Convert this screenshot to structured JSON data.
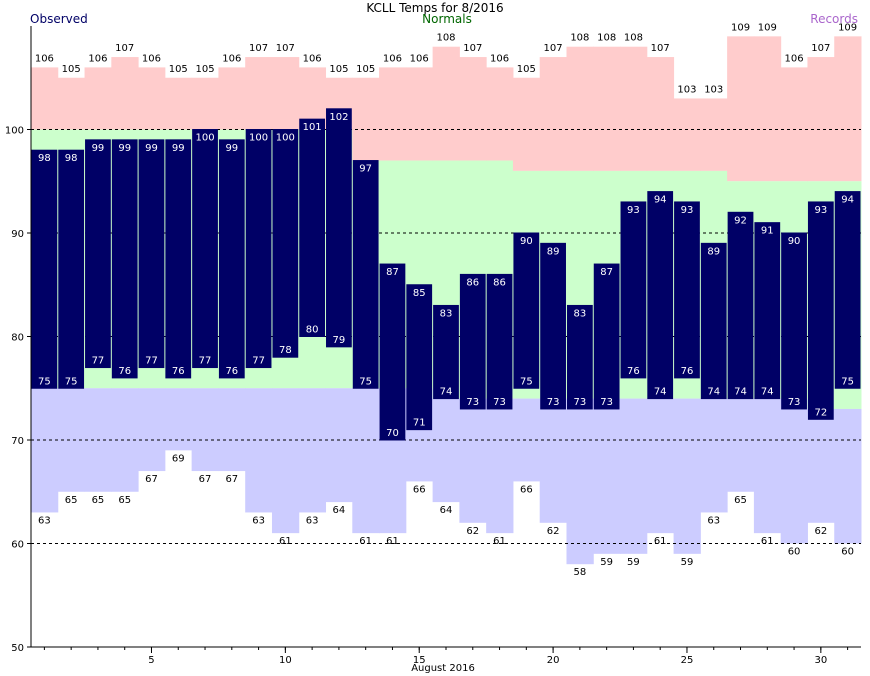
{
  "header": {
    "title": "KCLL Temps for 8/2016",
    "observed_label": "Observed",
    "normals_label": "Normals",
    "records_label": "Records"
  },
  "colors": {
    "observed": "#000066",
    "normals_band": "#ccffcc",
    "record_high_band": "#ffcccc",
    "record_low_band": "#ccccff",
    "normals_text": "#006600",
    "records_text": "#aa66cc",
    "grid": "#000000"
  },
  "chart_data": {
    "type": "bar",
    "title": "KCLL Temps for 8/2016",
    "xlabel": "August 2016",
    "ylabel": "",
    "ylim": [
      50,
      110
    ],
    "xlim": [
      0.5,
      31.5
    ],
    "yticks": [
      50,
      60,
      70,
      80,
      90,
      100
    ],
    "xticks": [
      5,
      10,
      15,
      20,
      25,
      30
    ],
    "grid_lines": [
      60,
      70,
      80,
      90,
      100
    ],
    "days": [
      1,
      2,
      3,
      4,
      5,
      6,
      7,
      8,
      9,
      10,
      11,
      12,
      13,
      14,
      15,
      16,
      17,
      18,
      19,
      20,
      21,
      22,
      23,
      24,
      25,
      26,
      27,
      28,
      29,
      30,
      31
    ],
    "series": [
      {
        "name": "Observed",
        "role": "obs_high",
        "values": [
          98,
          98,
          99,
          99,
          99,
          99,
          100,
          99,
          100,
          100,
          101,
          102,
          97,
          87,
          85,
          83,
          86,
          86,
          90,
          89,
          83,
          87,
          93,
          94,
          93,
          89,
          92,
          91,
          90,
          93,
          94
        ]
      },
      {
        "name": "Observed",
        "role": "obs_low",
        "values": [
          75,
          75,
          77,
          76,
          77,
          76,
          77,
          76,
          77,
          78,
          80,
          79,
          75,
          70,
          71,
          74,
          73,
          73,
          75,
          73,
          73,
          73,
          76,
          74,
          76,
          74,
          74,
          74,
          73,
          72,
          75
        ]
      },
      {
        "name": "Records",
        "role": "record_high",
        "values": [
          106,
          105,
          106,
          107,
          106,
          105,
          105,
          106,
          107,
          107,
          106,
          105,
          105,
          106,
          106,
          108,
          107,
          106,
          105,
          107,
          108,
          108,
          108,
          107,
          103,
          103,
          109,
          109,
          106,
          107,
          109
        ]
      },
      {
        "name": "Records",
        "role": "record_low",
        "values": [
          63,
          65,
          65,
          65,
          67,
          69,
          67,
          67,
          63,
          61,
          63,
          64,
          61,
          61,
          66,
          64,
          62,
          61,
          66,
          62,
          58,
          59,
          59,
          61,
          59,
          63,
          65,
          61,
          60,
          62,
          60
        ]
      },
      {
        "name": "Normals",
        "role": "normal_high",
        "values": [
          100,
          100,
          100,
          100,
          100,
          100,
          100,
          100,
          100,
          100,
          100,
          100,
          97,
          97,
          97,
          97,
          97,
          97,
          96,
          96,
          96,
          96,
          96,
          96,
          96,
          96,
          95,
          95,
          95,
          95,
          95
        ]
      },
      {
        "name": "Normals",
        "role": "normal_low",
        "values": [
          75,
          75,
          75,
          75,
          75,
          75,
          75,
          75,
          75,
          75,
          75,
          75,
          75,
          75,
          75,
          74,
          74,
          74,
          74,
          74,
          74,
          74,
          74,
          74,
          74,
          74,
          74,
          74,
          74,
          73,
          73
        ]
      }
    ]
  }
}
